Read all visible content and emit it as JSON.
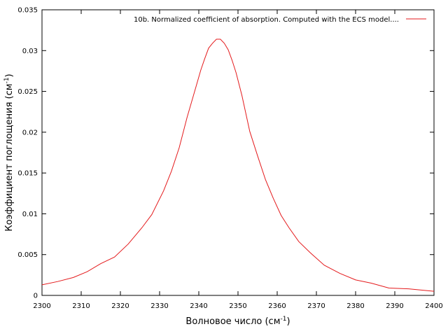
{
  "chart_data": {
    "type": "line",
    "title": "",
    "xlabel": "Волновое число (см",
    "xlabel_sup": "-1",
    "xlabel_end": ")",
    "ylabel": "Коэффициент поглощения (см",
    "ylabel_sup": "-1",
    "ylabel_end": ")",
    "xlim": [
      2300,
      2400
    ],
    "ylim": [
      0,
      0.035
    ],
    "xticks": [
      2300,
      2310,
      2320,
      2330,
      2340,
      2350,
      2360,
      2370,
      2380,
      2390,
      2400
    ],
    "yticks": [
      0,
      0.005,
      0.01,
      0.015,
      0.02,
      0.025,
      0.03,
      0.035
    ],
    "ytick_labels": [
      "0",
      "0.005",
      "0.01",
      "0.015",
      "0.02",
      "0.025",
      "0.03",
      "0.035"
    ],
    "grid": false,
    "legend_position": "top-right",
    "series": [
      {
        "name": "10b. Normalized coefficient of absorption. Computed with the ECS model....",
        "color": "#e41a1c",
        "x": [
          2300,
          2304,
          2308,
          2311.5,
          2315,
          2318.5,
          2322,
          2325.5,
          2328,
          2331,
          2333,
          2335,
          2337,
          2339,
          2340.5,
          2341.5,
          2342.5,
          2343.5,
          2344.5,
          2345.5,
          2346.5,
          2347.5,
          2348.5,
          2349.5,
          2351,
          2353,
          2355,
          2357,
          2359,
          2361,
          2363,
          2365.5,
          2368.5,
          2372,
          2376,
          2380,
          2384,
          2388.5,
          2393.5,
          2400
        ],
        "values": [
          0.0013,
          0.0017,
          0.0022,
          0.0029,
          0.0039,
          0.0047,
          0.0063,
          0.0083,
          0.0099,
          0.0128,
          0.0152,
          0.0181,
          0.0218,
          0.0251,
          0.0276,
          0.029,
          0.0303,
          0.0309,
          0.0314,
          0.0314,
          0.0309,
          0.0301,
          0.0288,
          0.0273,
          0.0245,
          0.0201,
          0.0171,
          0.0142,
          0.0119,
          0.0098,
          0.0083,
          0.0066,
          0.0052,
          0.0037,
          0.0027,
          0.0019,
          0.0015,
          0.0009,
          0.0008,
          0.0005
        ]
      }
    ]
  }
}
